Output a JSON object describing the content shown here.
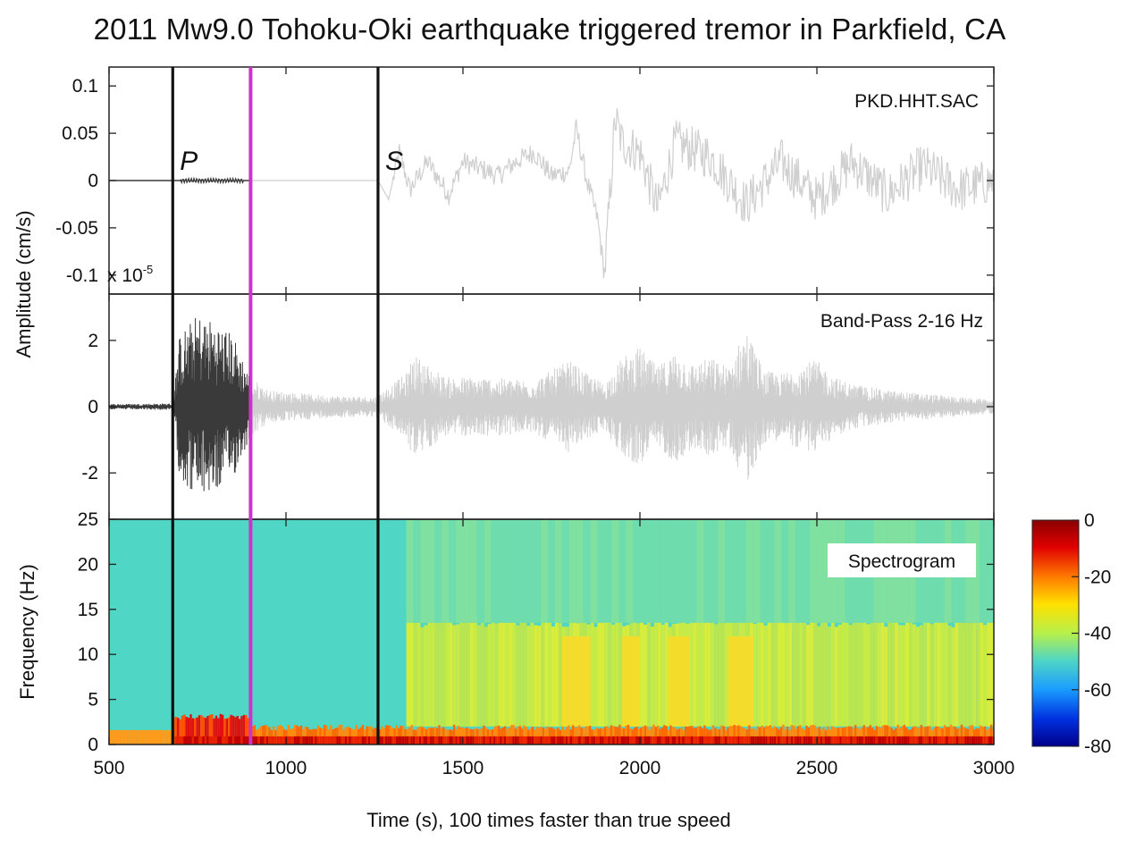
{
  "title": "2011 Mw9.0 Tohoku-Oki earthquake triggered tremor in Parkfield, CA",
  "colors": {
    "trace_highlight": "#3a3a3a",
    "trace_faded": "#cfcfcf",
    "phase_line": "#111111",
    "playhead": "#cc33cc",
    "spec_background": "#4fd6c4"
  },
  "chart_data": [
    {
      "type": "line",
      "panel": "raw",
      "label": "PKD.HHT.SAC",
      "ylabel": "Amplitude (cm/s)",
      "scale_note": "x 10",
      "scale_exponent": "-5",
      "xlim": [
        500,
        3000
      ],
      "ylim": [
        -0.12,
        0.12
      ],
      "yticks": [
        "0.1",
        "0.05",
        "0",
        "-0.05",
        "-0.1"
      ],
      "ytick_values": [
        0.1,
        0.05,
        0,
        -0.05,
        -0.1
      ],
      "series": [
        {
          "x": [
            500,
            680,
            700,
            780,
            900,
            1000,
            1200,
            1260,
            1290,
            1320,
            1350,
            1400,
            1460,
            1500,
            1600,
            1650,
            1700,
            1750,
            1800,
            1820,
            1850,
            1880,
            1900,
            1930,
            1950,
            2000,
            2050,
            2100,
            2200,
            2300,
            2400,
            2500,
            2600,
            2700,
            2800,
            2900,
            3000
          ],
          "y": [
            0,
            0,
            0,
            0,
            0,
            0,
            0,
            0,
            -0.02,
            0.03,
            -0.01,
            0.02,
            -0.015,
            0.02,
            0.005,
            0.02,
            0.03,
            0.005,
            0.01,
            0.055,
            0.0,
            -0.04,
            -0.1,
            0.065,
            0.04,
            0.03,
            -0.03,
            0.04,
            0.025,
            -0.025,
            0.02,
            -0.02,
            0.02,
            -0.015,
            0.015,
            -0.01,
            0
          ]
        }
      ]
    },
    {
      "type": "line",
      "panel": "bandpass",
      "label": "Band-Pass 2-16 Hz",
      "xlim": [
        500,
        3000
      ],
      "ylim": [
        -3.4,
        3.4
      ],
      "yticks": [
        "2",
        "0",
        "-2"
      ],
      "ytick_values": [
        2,
        0,
        -2
      ],
      "envelope": {
        "x": [
          500,
          680,
          700,
          750,
          800,
          850,
          900,
          950,
          1100,
          1250,
          1340,
          1360,
          1450,
          1550,
          1700,
          1800,
          1850,
          1900,
          1950,
          2000,
          2050,
          2100,
          2150,
          2200,
          2250,
          2300,
          2350,
          2400,
          2450,
          2500,
          2550,
          2600,
          2700,
          2800,
          2900,
          3000
        ],
        "amp": [
          0.08,
          0.1,
          2.2,
          2.8,
          2.6,
          2.2,
          0.9,
          0.5,
          0.35,
          0.3,
          1.0,
          1.6,
          0.9,
          0.9,
          0.8,
          1.4,
          1.0,
          0.7,
          1.5,
          1.8,
          1.2,
          1.7,
          1.3,
          1.5,
          1.2,
          2.4,
          1.1,
          1.0,
          1.3,
          1.4,
          0.9,
          0.7,
          0.5,
          0.4,
          0.3,
          0.2
        ]
      }
    },
    {
      "type": "heatmap",
      "panel": "spectrogram",
      "label": "Spectrogram",
      "ylabel": "Frequency (Hz)",
      "xlabel": "Time (s), 100 times faster than true speed",
      "xlim": [
        500,
        3000
      ],
      "ylim": [
        0,
        25
      ],
      "xticks": [
        "500",
        "1000",
        "1500",
        "2000",
        "2500",
        "3000"
      ],
      "xtick_values": [
        500,
        1000,
        1500,
        2000,
        2500,
        3000
      ],
      "yticks": [
        "25",
        "20",
        "15",
        "10",
        "5",
        "0"
      ],
      "ytick_values": [
        25,
        20,
        15,
        10,
        5,
        0
      ],
      "colorbar": {
        "ticks": [
          "0",
          "-20",
          "-40",
          "-60",
          "-80"
        ],
        "tick_values": [
          0,
          -20,
          -40,
          -60,
          -80
        ],
        "range": [
          -80,
          0
        ]
      },
      "tremor_onset": 1340
    }
  ],
  "markers": [
    {
      "label": "P",
      "x": 680
    },
    {
      "label": "S",
      "x": 1260
    }
  ],
  "playhead_x": 900
}
